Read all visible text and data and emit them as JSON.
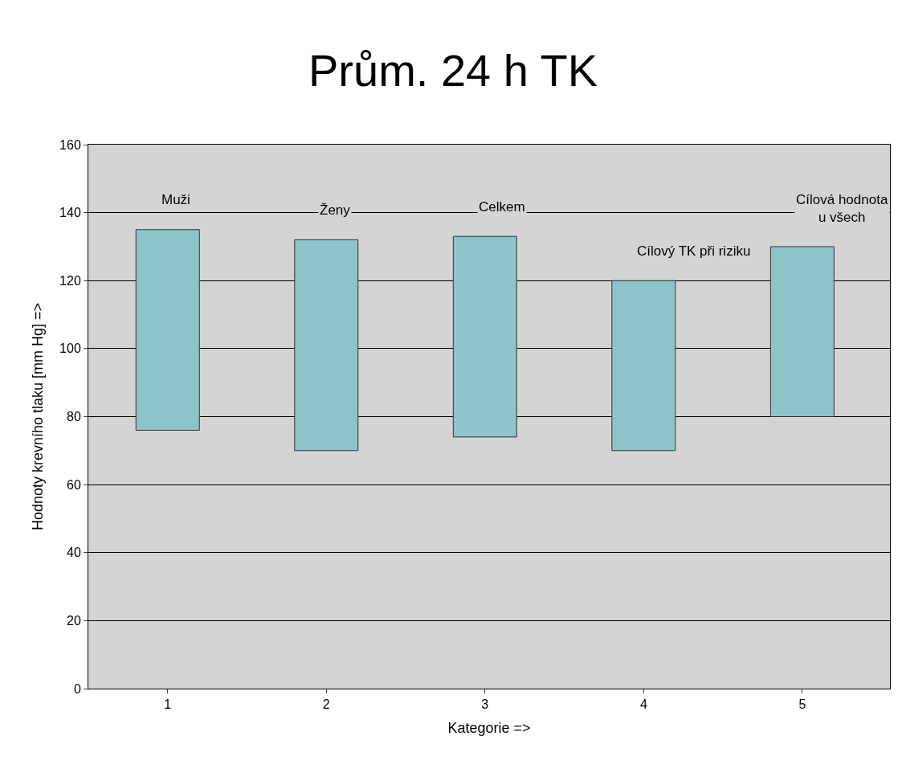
{
  "chart_data": {
    "type": "bar",
    "title": "Prům. 24 h TK",
    "xlabel": "Kategorie =>",
    "ylabel": "Hodnoty krevního tlaku [mm Hg] =>",
    "categories": [
      "1",
      "2",
      "3",
      "4",
      "5"
    ],
    "series": [
      {
        "name": "Muži",
        "color": "#8cc4c8",
        "values": [
          59,
          null,
          null,
          null,
          null
        ],
        "base": [
          76,
          null,
          null,
          null,
          null
        ]
      },
      {
        "name": "Ženy",
        "color": "#8cc4c8",
        "values": [
          null,
          62,
          null,
          null,
          null
        ],
        "base": [
          null,
          70,
          null,
          null,
          null
        ]
      },
      {
        "name": "Celkem",
        "color": "#8cc4c8",
        "values": [
          null,
          null,
          59,
          null,
          null
        ],
        "base": [
          null,
          null,
          74,
          null,
          null
        ]
      },
      {
        "name": "Cílový TK při riziku",
        "color": "#8cc4c8",
        "values": [
          null,
          null,
          null,
          50,
          null
        ],
        "base": [
          null,
          null,
          null,
          70,
          null
        ]
      },
      {
        "name": "Cílová hodnota\nu všech",
        "color": "#8cc4c8",
        "values": [
          null,
          null,
          null,
          null,
          50
        ],
        "base": [
          null,
          null,
          null,
          null,
          80
        ]
      }
    ],
    "ylim": [
      0,
      160
    ],
    "yticks": [
      0,
      20,
      40,
      60,
      80,
      100,
      120,
      140,
      160
    ],
    "grid": "y"
  }
}
